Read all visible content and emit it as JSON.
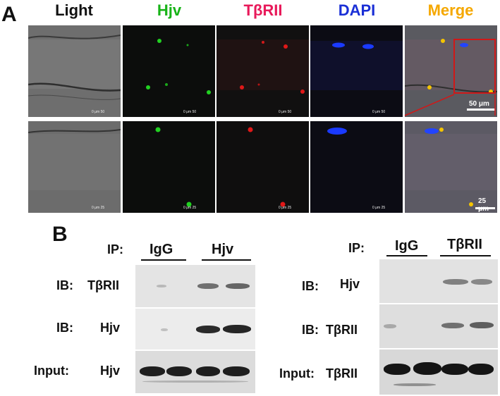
{
  "panel_a": {
    "letter": "A",
    "columns": [
      {
        "label": "Light",
        "color": "#111111"
      },
      {
        "label": "Hjv",
        "color": "#18b318"
      },
      {
        "label": "TβRII",
        "color": "#e8195a"
      },
      {
        "label": "DAPI",
        "color": "#1a2fd6"
      },
      {
        "label": "Merge",
        "color": "#f5a800"
      }
    ],
    "row1_micro_scale": "0       μm       50",
    "row2_micro_scale": "0       μm       25",
    "row1_scalebar": "50 μm",
    "row2_scalebar": "25 μm"
  },
  "panel_b": {
    "letter": "B",
    "left": {
      "ip_label": "IP:",
      "ip_groups": [
        "IgG",
        "Hjv"
      ],
      "rows": [
        {
          "prefix": "IB:",
          "target": "TβRII"
        },
        {
          "prefix": "IB:",
          "target": "Hjv"
        },
        {
          "prefix": "Input:",
          "target": "Hjv"
        }
      ]
    },
    "right": {
      "ip_label": "IP:",
      "ip_groups": [
        "IgG",
        "TβRII"
      ],
      "rows": [
        {
          "prefix": "IB:",
          "target": "Hjv"
        },
        {
          "prefix": "IB:",
          "target": "TβRII"
        },
        {
          "prefix": "Input:",
          "target": "TβRII"
        }
      ]
    }
  }
}
